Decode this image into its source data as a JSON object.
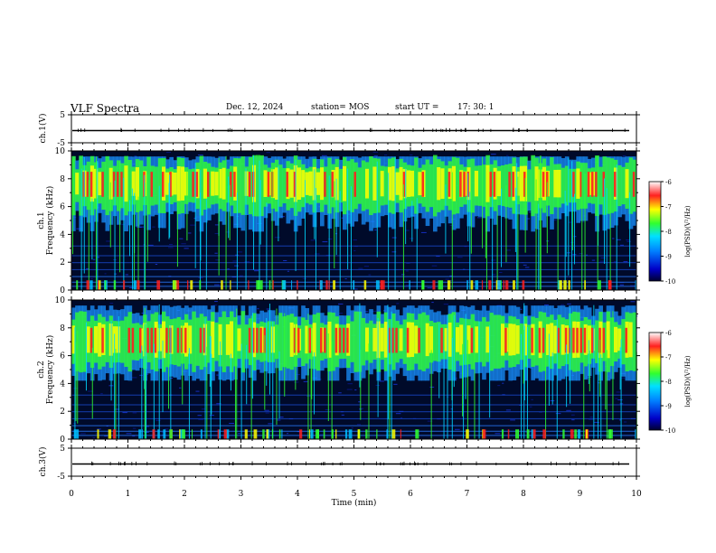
{
  "header": {
    "title": "VLF Spectra",
    "date": "Dec. 12, 2024",
    "station": "station= MOS",
    "start_label": "start  UT  =",
    "start_time": "17: 30: 1"
  },
  "panels": {
    "ch1_wave_label": "ch.1(V)",
    "ch1_spec_label": "ch.1",
    "ch2_spec_label": "ch.2",
    "ch3_wave_label": "ch.3(V)",
    "freq_label": "Frequency (kHz)",
    "wave_ticks": [
      "5",
      "-5"
    ],
    "freq_ticks": [
      "0",
      "2",
      "4",
      "6",
      "8",
      "10"
    ]
  },
  "x_axis": {
    "label": "Time (min)",
    "ticks": [
      "0",
      "1",
      "2",
      "3",
      "4",
      "5",
      "6",
      "7",
      "8",
      "9",
      "10"
    ]
  },
  "colorbar": {
    "label": "log(PSD)(V²/Hz)",
    "ticks": [
      "-6",
      "-7",
      "-8",
      "-9",
      "-10"
    ]
  },
  "colors": {
    "background": "#000a2a",
    "blue": "#1e3cff",
    "green": "#30ff30",
    "yellow": "#ffff00",
    "red": "#ff1e1e",
    "waveform": "#000000"
  },
  "chart_data": [
    {
      "type": "line",
      "title": "ch.1(V)",
      "xlabel": "",
      "ylabel": "ch.1(V)",
      "xlim": [
        0,
        10
      ],
      "ylim": [
        -5,
        5
      ],
      "series": [
        {
          "values": [
            0,
            0
          ]
        }
      ]
    },
    {
      "type": "heatmap",
      "title": "ch.1",
      "xlabel": "",
      "ylabel": "Frequency (kHz)",
      "xlim": [
        0,
        10
      ],
      "ylim": [
        0,
        10
      ],
      "band_center_khz": 7.5,
      "emission_kind": "broadband VLF noise with vertical spikes",
      "log_psd_range": [
        -10,
        -6
      ]
    },
    {
      "type": "heatmap",
      "title": "ch.2",
      "xlabel": "",
      "ylabel": "Frequency (kHz)",
      "xlim": [
        0,
        10
      ],
      "ylim": [
        0,
        10
      ],
      "band_center_khz": 7.0,
      "emission_kind": "broadband VLF noise with vertical spikes",
      "log_psd_range": [
        -10,
        -6
      ]
    },
    {
      "type": "line",
      "title": "ch.3(V)",
      "xlabel": "Time (min)",
      "ylabel": "ch.3(V)",
      "xlim": [
        0,
        10
      ],
      "ylim": [
        -5,
        5
      ],
      "series": [
        {
          "values": [
            0,
            0
          ]
        }
      ]
    }
  ]
}
